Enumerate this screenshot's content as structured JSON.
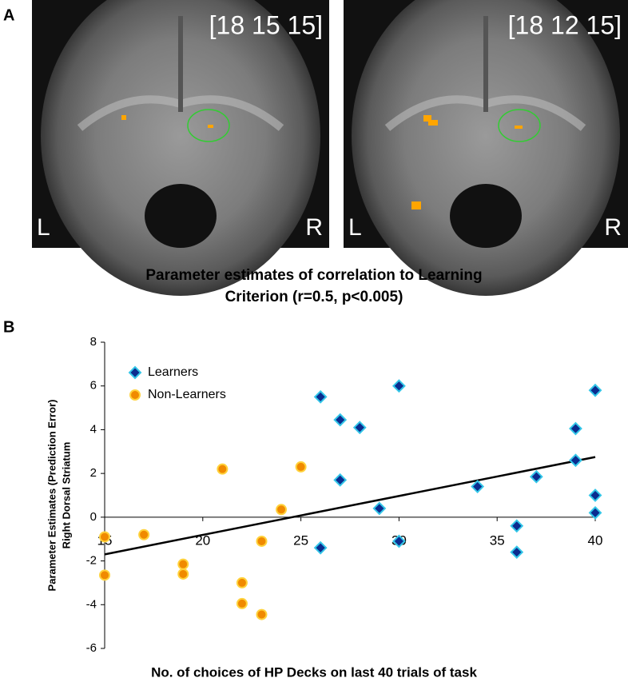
{
  "panel_a": {
    "label": "A",
    "images": [
      {
        "coords": "[18 15 15]",
        "left": "L",
        "right": "R"
      },
      {
        "coords": "[18 12 15]",
        "left": "L",
        "right": "R"
      }
    ],
    "caption": [
      "Parameter estimates of correlation to Learning",
      "Criterion (r=0.5, p<0.005)"
    ]
  },
  "chart_data": {
    "type": "scatter",
    "panel_label": "B",
    "xlabel": "No. of choices of HP Decks on last 40 trials of task",
    "ylabel": [
      "Parameter Estimates (Prediction Error)",
      "Right Dorsal Striatum"
    ],
    "xlim": [
      15,
      40
    ],
    "xticks": [
      15,
      20,
      25,
      30,
      35,
      40
    ],
    "ylim": [
      -6,
      8
    ],
    "yticks": [
      -6,
      -4,
      -2,
      0,
      2,
      4,
      6,
      8
    ],
    "legend": "upper left",
    "series": [
      {
        "name": "Learners",
        "color": "#0b2c8f",
        "edge": "#33c6e8",
        "marker": "diamond",
        "x": [
          26,
          27,
          28,
          30,
          27,
          29,
          26,
          30,
          34,
          37,
          39,
          39,
          36,
          36,
          40,
          40,
          40
        ],
        "y": [
          5.5,
          4.45,
          4.1,
          6.0,
          1.7,
          0.4,
          -1.4,
          -1.1,
          1.4,
          1.85,
          4.05,
          2.6,
          -0.4,
          -1.6,
          5.8,
          1.0,
          0.2
        ]
      },
      {
        "name": "Non-Learners",
        "color": "#f08a00",
        "edge": "#ffd23c",
        "marker": "circle",
        "x": [
          15,
          15,
          17,
          19,
          19,
          21,
          22,
          22,
          23,
          23,
          24,
          25
        ],
        "y": [
          -0.9,
          -2.65,
          -0.8,
          -2.15,
          -2.6,
          2.2,
          -3.0,
          -3.95,
          -1.1,
          -4.45,
          0.35,
          2.3
        ]
      }
    ],
    "trendline": {
      "color": "#000000",
      "x": [
        15,
        40
      ],
      "y": [
        -1.7,
        2.75
      ]
    }
  }
}
